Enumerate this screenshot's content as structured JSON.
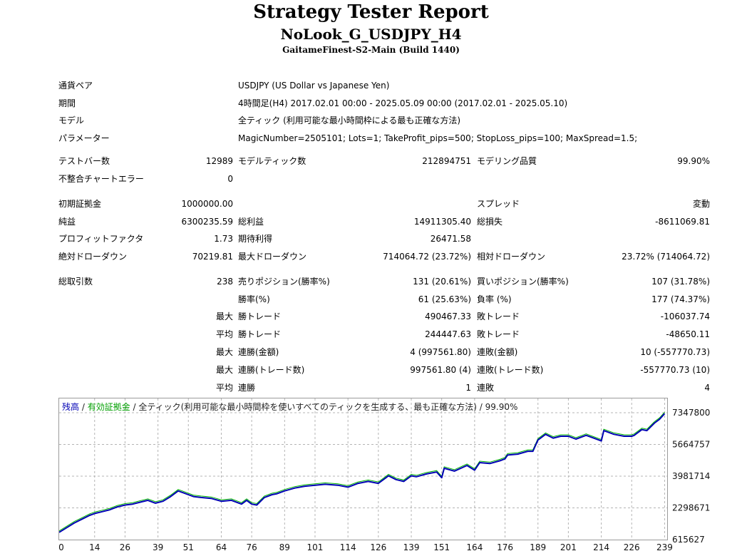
{
  "header": {
    "title": "Strategy Tester Report",
    "ea_name": "NoLook_G_USDJPY_H4",
    "server": "GaitameFinest-S2-Main (Build 1440)"
  },
  "info": {
    "symbol_label": "通貨ペア",
    "symbol_value": "USDJPY (US Dollar vs Japanese Yen)",
    "period_label": "期間",
    "period_value": "4時間足(H4) 2017.02.01 00:00 - 2025.05.09 00:00 (2017.02.01 - 2025.05.10)",
    "model_label": "モデル",
    "model_value": "全ティック (利用可能な最小時間枠による最も正確な方法)",
    "params_label": "パラメーター",
    "params_value": "MagicNumber=2505101; Lots=1; TakeProfit_pips=500; StopLoss_pips=100; MaxSpread=1.5;"
  },
  "stats": {
    "bars_label": "テストバー数",
    "bars_value": "12989",
    "ticks_label": "モデルティック数",
    "ticks_value": "212894751",
    "quality_label": "モデリング品質",
    "quality_value": "99.90%",
    "mismatch_label": "不整合チャートエラー",
    "mismatch_value": "0",
    "deposit_label": "初期証拠金",
    "deposit_value": "1000000.00",
    "spread_label": "スプレッド",
    "spread_value": "変動",
    "net_label": "純益",
    "net_value": "6300235.59",
    "gross_profit_label": "総利益",
    "gross_profit_value": "14911305.40",
    "gross_loss_label": "総損失",
    "gross_loss_value": "-8611069.81",
    "pf_label": "プロフィットファクタ",
    "pf_value": "1.73",
    "expected_label": "期待利得",
    "expected_value": "26471.58",
    "abs_dd_label": "絶対ドローダウン",
    "abs_dd_value": "70219.81",
    "max_dd_label": "最大ドローダウン",
    "max_dd_value": "714064.72 (23.72%)",
    "rel_dd_label": "相対ドローダウン",
    "rel_dd_value": "23.72% (714064.72)"
  },
  "trades": {
    "total_label": "総取引数",
    "total_value": "238",
    "short_label": "売りポジション(勝率%)",
    "short_value": "131 (20.61%)",
    "long_label": "買いポジション(勝率%)",
    "long_value": "107 (31.78%)",
    "winrate_label": "勝率(%)",
    "winrate_value": "61 (25.63%)",
    "lossrate_label": "負率 (%)",
    "lossrate_value": "177 (74.37%)",
    "max_prefix": "最大",
    "avg_prefix": "平均",
    "largest_win_label": "勝トレード",
    "largest_win_value": "490467.33",
    "largest_loss_label": "敗トレード",
    "largest_loss_value": "-106037.74",
    "avg_win_label": "勝トレード",
    "avg_win_value": "244447.63",
    "avg_loss_label": "敗トレード",
    "avg_loss_value": "-48650.11",
    "max_cons_wins_label": "連勝(金額)",
    "max_cons_wins_value": "4 (997561.80)",
    "max_cons_losses_label": "連敗(金額)",
    "max_cons_losses_value": "10 (-557770.73)",
    "max_cons_profit_label": "連勝(トレード数)",
    "max_cons_profit_value": "997561.80 (4)",
    "max_cons_loss_label": "連敗(トレード数)",
    "max_cons_loss_value": "-557770.73 (10)",
    "avg_cons_wins_label": "連勝",
    "avg_cons_wins_value": "1",
    "avg_cons_losses_label": "連敗",
    "avg_cons_losses_value": "4"
  },
  "chart_legend": {
    "balance": "残高",
    "sep1": " / ",
    "equity": "有効証拠金",
    "sep2": " / ",
    "desc": "全ティック(利用可能な最小時間枠を使いすべてのティックを生成する、最も正確な方法) / 99.90%"
  },
  "colors": {
    "balance": "#0000b4",
    "equity": "#00b400",
    "grid": "#b4b4b4"
  },
  "chart_data": {
    "type": "line",
    "x_label_values": [
      0,
      14,
      26,
      39,
      51,
      64,
      76,
      89,
      101,
      114,
      126,
      139,
      151,
      164,
      176,
      189,
      201,
      214,
      226,
      239
    ],
    "y_tick_labels": [
      "7347800",
      "5664757",
      "3981714",
      "2298671",
      "615627"
    ],
    "ylim": [
      615627,
      7347800
    ],
    "xlim": [
      0,
      240
    ],
    "series": [
      {
        "key": "balance",
        "x": [
          0,
          3,
          6,
          9,
          12,
          14,
          17,
          20,
          23,
          26,
          29,
          32,
          35,
          38,
          41,
          44,
          47,
          49,
          51,
          53,
          56,
          60,
          64,
          68,
          72,
          74,
          76,
          78,
          81,
          84,
          86,
          89,
          93,
          97,
          101,
          105,
          110,
          114,
          118,
          122,
          126,
          129,
          130,
          133,
          136,
          139,
          141,
          145,
          149,
          151,
          152,
          156,
          161,
          164,
          166,
          170,
          174,
          176,
          177,
          181,
          185,
          187,
          189,
          192,
          195,
          198,
          201,
          204,
          208,
          211,
          214,
          215,
          219,
          223,
          226,
          227,
          230,
          232,
          235,
          237,
          239
        ],
        "y": [
          1000000,
          1250000,
          1500000,
          1700000,
          1900000,
          2000000,
          2100000,
          2200000,
          2350000,
          2450000,
          2500000,
          2600000,
          2700000,
          2550000,
          2650000,
          2900000,
          3200000,
          3100000,
          3000000,
          2900000,
          2850000,
          2800000,
          2650000,
          2700000,
          2500000,
          2700000,
          2500000,
          2450000,
          2850000,
          3000000,
          3050000,
          3200000,
          3350000,
          3450000,
          3500000,
          3550000,
          3500000,
          3400000,
          3600000,
          3700000,
          3600000,
          3900000,
          4000000,
          3800000,
          3700000,
          4000000,
          3950000,
          4100000,
          4200000,
          3900000,
          4400000,
          4250000,
          4550000,
          4300000,
          4700000,
          4650000,
          4800000,
          4900000,
          5100000,
          5150000,
          5300000,
          5300000,
          5900000,
          6200000,
          6000000,
          6100000,
          6100000,
          5950000,
          6150000,
          6000000,
          5850000,
          6400000,
          6200000,
          6100000,
          6100000,
          6150000,
          6450000,
          6400000,
          6800000,
          7000000,
          7300000
        ]
      }
    ]
  }
}
